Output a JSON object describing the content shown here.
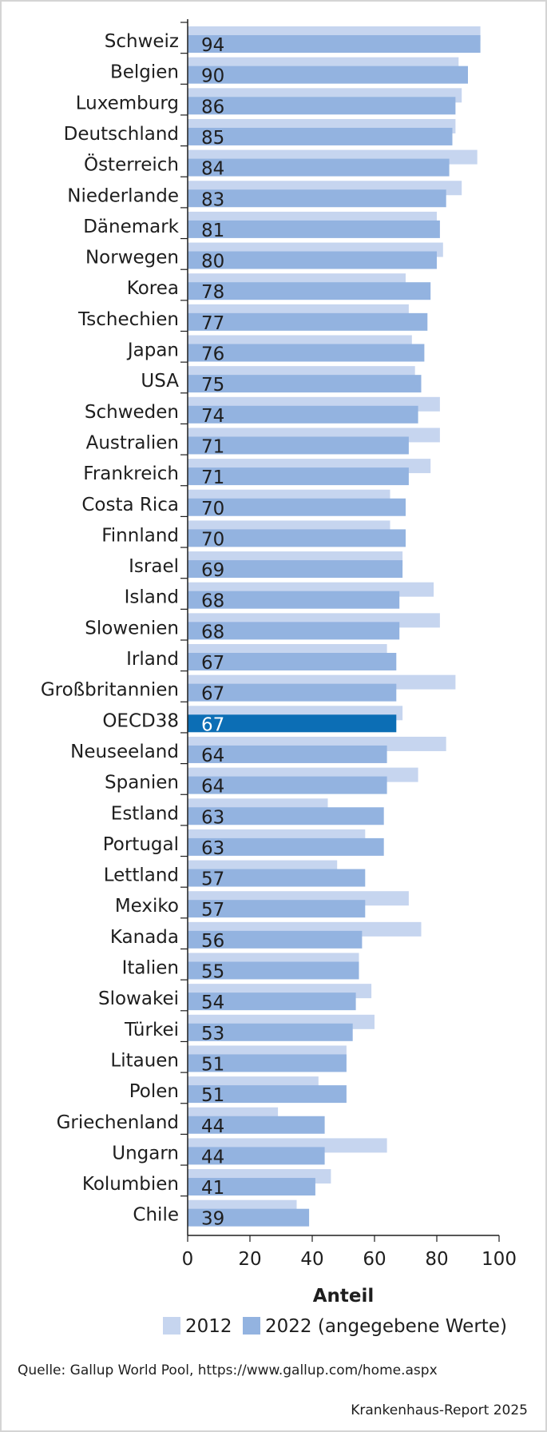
{
  "chart_data": {
    "type": "bar",
    "orientation": "horizontal",
    "categories": [
      "Schweiz",
      "Belgien",
      "Luxemburg",
      "Deutschland",
      "Österreich",
      "Niederlande",
      "Dänemark",
      "Norwegen",
      "Korea",
      "Tschechien",
      "Japan",
      "USA",
      "Schweden",
      "Australien",
      "Frankreich",
      "Costa Rica",
      "Finnland",
      "Israel",
      "Island",
      "Slowenien",
      "Irland",
      "Großbritannien",
      "OECD38",
      "Neuseeland",
      "Spanien",
      "Estland",
      "Portugal",
      "Lettland",
      "Mexiko",
      "Kanada",
      "Italien",
      "Slowakei",
      "Türkei",
      "Litauen",
      "Polen",
      "Griechenland",
      "Ungarn",
      "Kolumbien",
      "Chile"
    ],
    "series": [
      {
        "name": "2012",
        "color": "#c6d5ef",
        "values": [
          94,
          87,
          88,
          86,
          93,
          88,
          80,
          82,
          70,
          71,
          72,
          73,
          81,
          81,
          78,
          65,
          65,
          69,
          79,
          81,
          64,
          86,
          69,
          83,
          74,
          45,
          57,
          48,
          71,
          75,
          55,
          59,
          60,
          51,
          42,
          29,
          64,
          46,
          35
        ]
      },
      {
        "name": "2022 (angegebene Werte)",
        "color": "#93b3e0",
        "values": [
          94,
          90,
          86,
          85,
          84,
          83,
          81,
          80,
          78,
          77,
          76,
          75,
          74,
          71,
          71,
          70,
          70,
          69,
          68,
          68,
          67,
          67,
          67,
          64,
          64,
          63,
          63,
          57,
          57,
          56,
          55,
          54,
          53,
          51,
          51,
          44,
          44,
          41,
          39
        ]
      }
    ],
    "highlight": {
      "category": "OECD38",
      "color": "#0c6eb5"
    },
    "data_labels": [
      "94",
      "90",
      "86",
      "85",
      "84",
      "83",
      "81",
      "80",
      "78",
      "77",
      "76",
      "75",
      "74",
      "71",
      "71",
      "70",
      "70",
      "69",
      "68",
      "68",
      "67",
      "67",
      "67",
      "64",
      "64",
      "63",
      "63",
      "57",
      "57",
      "56",
      "55",
      "54",
      "53",
      "51",
      "51",
      "44",
      "44",
      "41",
      "39"
    ],
    "xlabel": "Anteil",
    "xlim": [
      0,
      100
    ],
    "xticks": [
      "0",
      "20",
      "40",
      "60",
      "80",
      "100"
    ],
    "legend_position": "bottom"
  },
  "footer": {
    "source": "Quelle: Gallup World Pool, https://www.gallup.com/home.aspx",
    "credit": "Krankenhaus-Report 2025"
  }
}
